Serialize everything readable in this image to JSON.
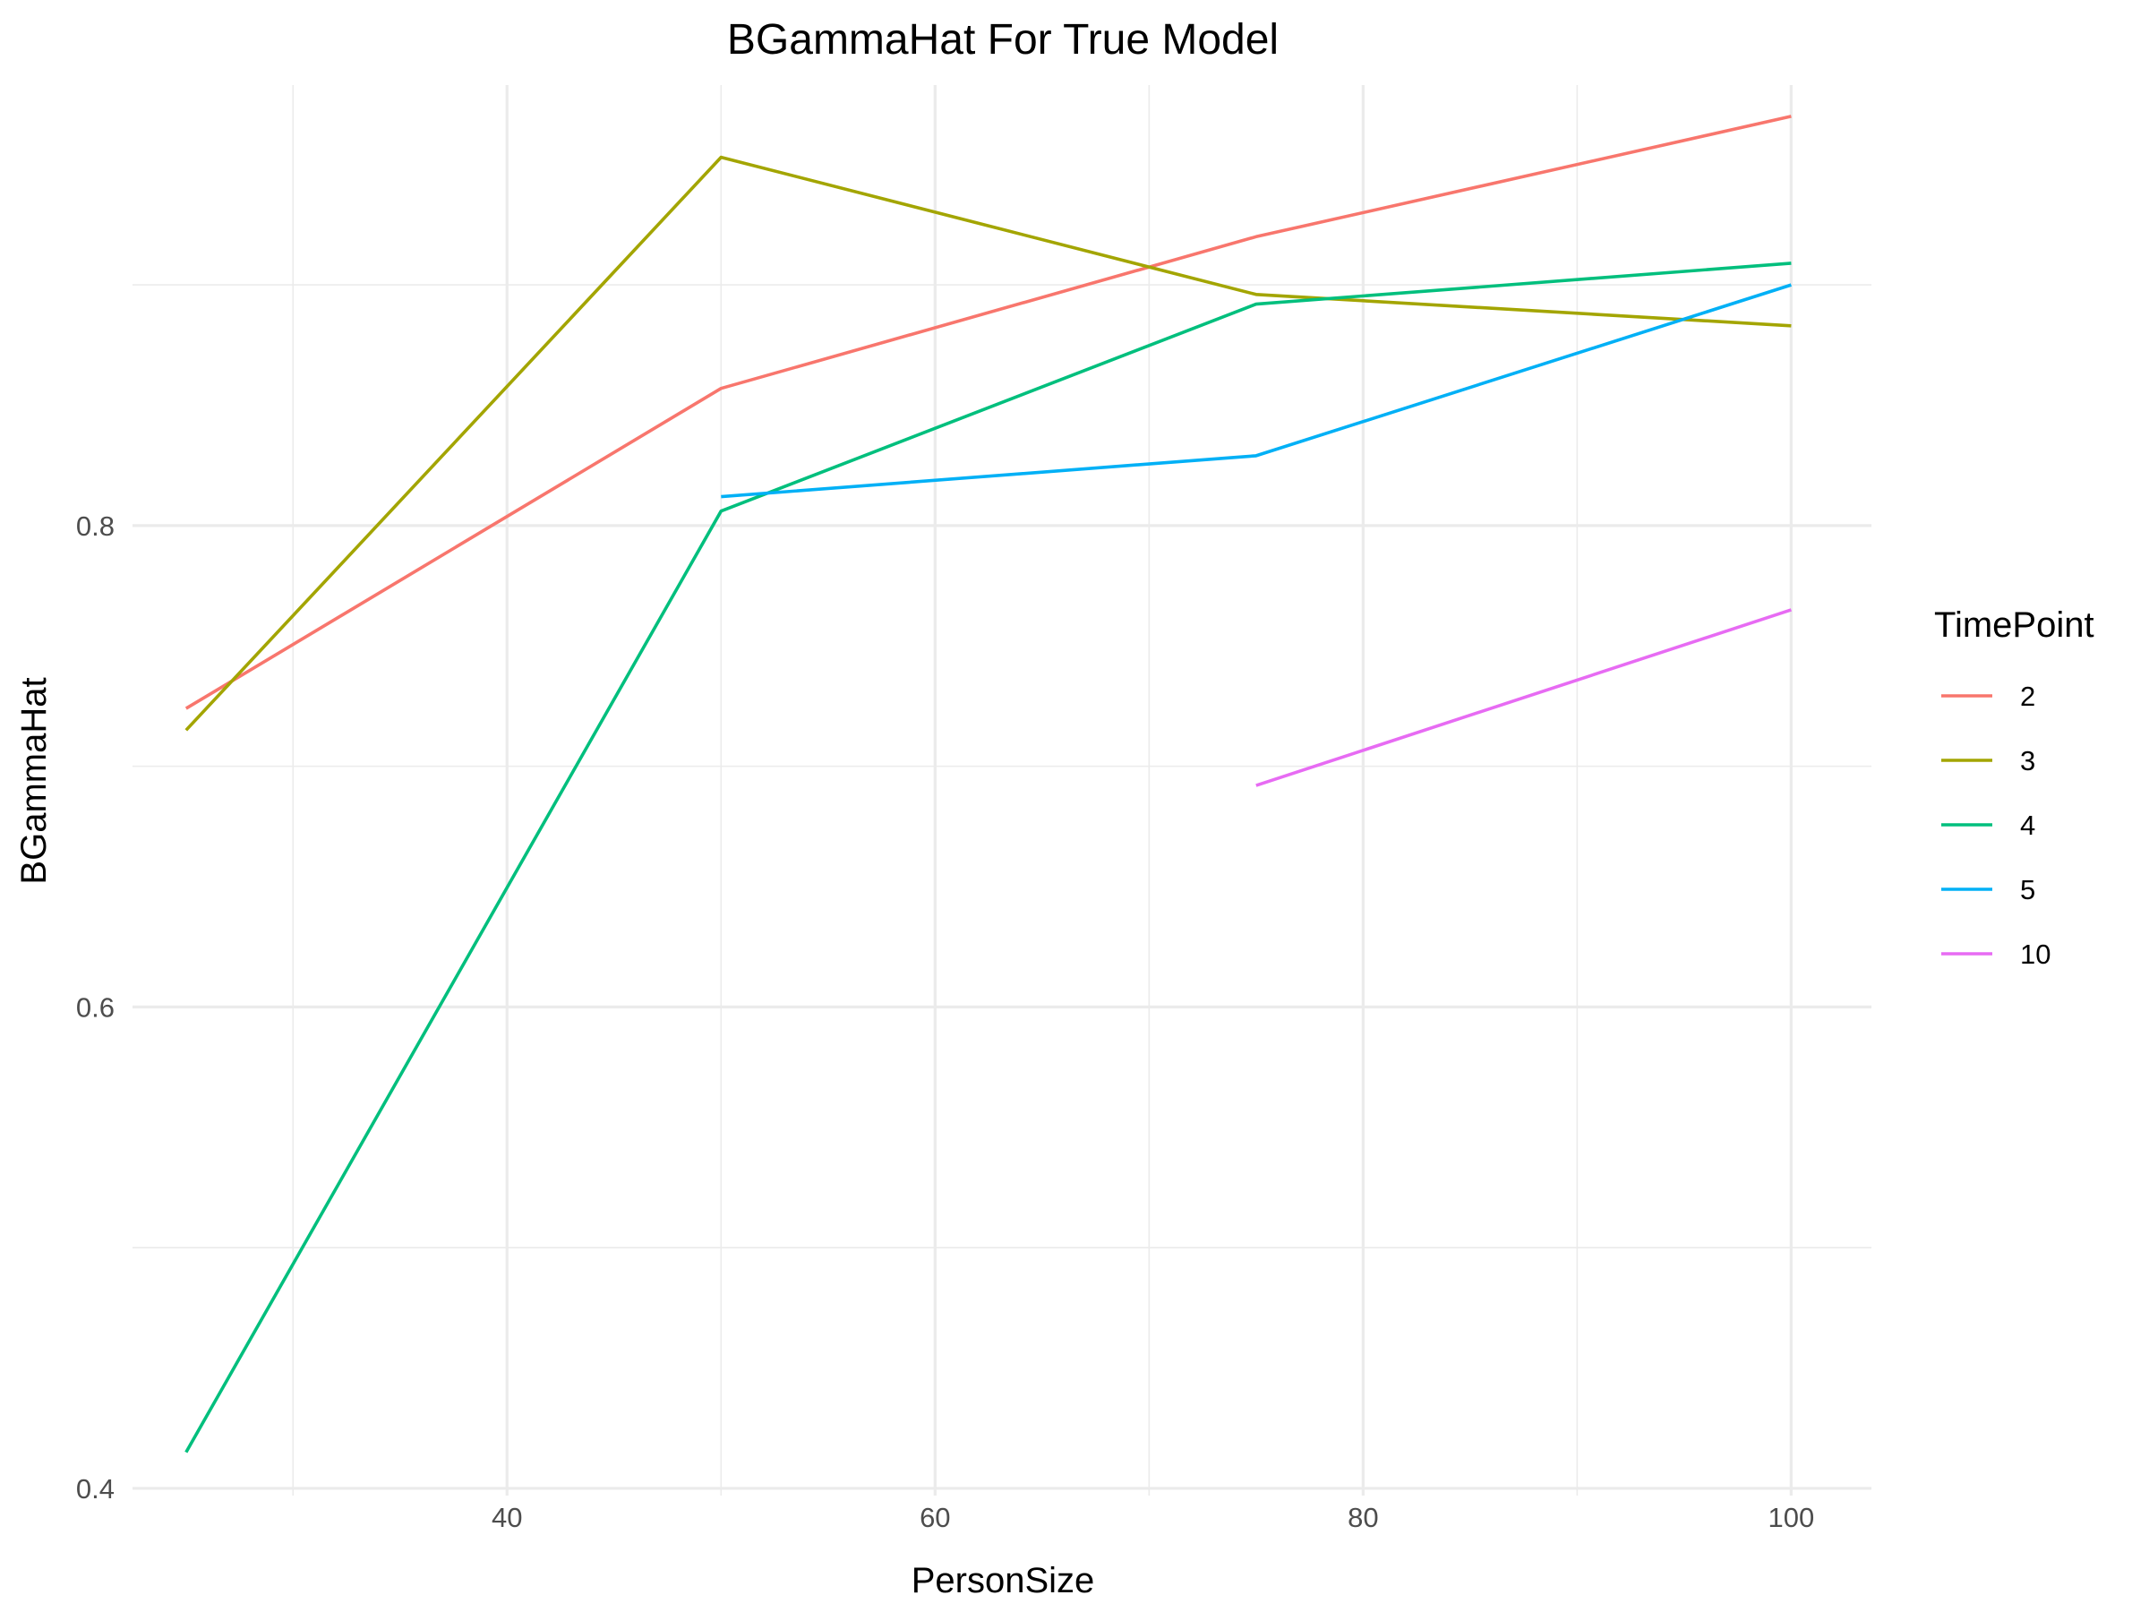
{
  "chart_data": {
    "type": "line",
    "title": "BGammaHat For True Model",
    "xlabel": "PersonSize",
    "ylabel": "BGammaHat",
    "xlim": [
      22.5,
      103.75
    ],
    "ylim": [
      0.397,
      0.983
    ],
    "x_ticks": [
      40,
      60,
      80,
      100
    ],
    "x_tick_labels": [
      "40",
      "60",
      "80",
      "100"
    ],
    "x_minor_ticks": [
      30,
      50,
      70,
      90
    ],
    "y_ticks": [
      0.4,
      0.6,
      0.8
    ],
    "y_tick_labels": [
      "0.4",
      "0.6",
      "0.8"
    ],
    "y_minor_ticks": [
      0.5,
      0.7,
      0.9
    ],
    "grid": true,
    "legend": {
      "title": "TimePoint",
      "position": "right"
    },
    "series": [
      {
        "name": "2",
        "color": "#F8766D",
        "points": [
          [
            25,
            0.724
          ],
          [
            50,
            0.857
          ],
          [
            75,
            0.92
          ],
          [
            100,
            0.97
          ]
        ]
      },
      {
        "name": "3",
        "color": "#A3A500",
        "points": [
          [
            25,
            0.715
          ],
          [
            50,
            0.953
          ],
          [
            75,
            0.896
          ],
          [
            100,
            0.883
          ]
        ]
      },
      {
        "name": "4",
        "color": "#00BF7D",
        "points": [
          [
            25,
            0.415
          ],
          [
            50,
            0.806
          ],
          [
            75,
            0.892
          ],
          [
            100,
            0.909
          ]
        ]
      },
      {
        "name": "5",
        "color": "#00B0F6",
        "points": [
          [
            50,
            0.812
          ],
          [
            75,
            0.829
          ],
          [
            100,
            0.9
          ]
        ]
      },
      {
        "name": "10",
        "color": "#E76BF3",
        "points": [
          [
            75,
            0.692
          ],
          [
            100,
            0.765
          ]
        ]
      }
    ]
  }
}
